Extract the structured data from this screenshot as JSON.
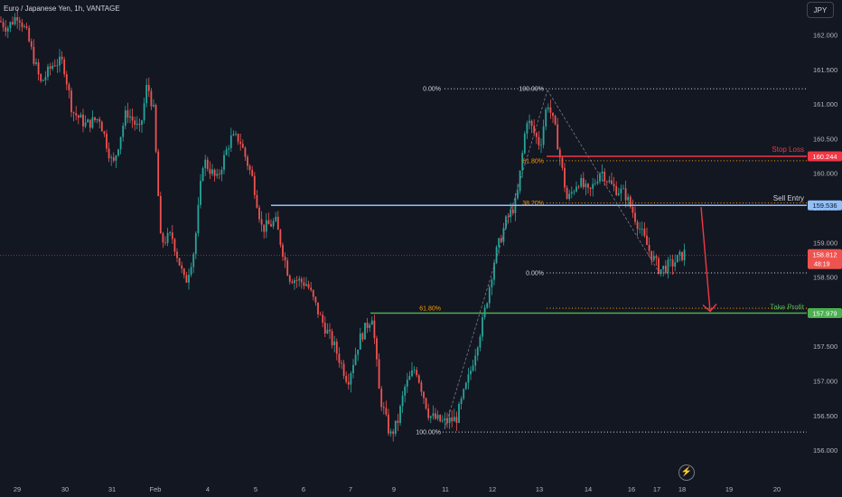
{
  "header": {
    "title": "Euro / Japanese Yen, 1h, VANTAGE",
    "currency": "JPY"
  },
  "alert_icon": "lightning-bolt-icon",
  "colors": {
    "background": "#131722",
    "up": "#26a69a",
    "down": "#ef5350",
    "grid_text": "#b2b5be",
    "stop_loss": "#f23645",
    "sell_entry": "#90bff9",
    "take_profit": "#4caf50",
    "fib_orange": "#ff9800",
    "arrow": "#f23645"
  },
  "chart_data": {
    "type": "candlestick",
    "symbol": "Euro / Japanese Yen",
    "timeframe": "1h",
    "source": "VANTAGE",
    "x_tick_labels": [
      "29",
      "30",
      "31",
      "Feb",
      "4",
      "5",
      "6",
      "7",
      "9",
      "11",
      "12",
      "13",
      "14",
      "16",
      "17",
      "18",
      "19",
      "20"
    ],
    "y_ticks": [
      156.0,
      156.5,
      157.0,
      157.5,
      158.0,
      158.5,
      159.0,
      159.5,
      160.0,
      160.5,
      161.0,
      161.5,
      162.0
    ],
    "y_tick_labels": [
      "156.000",
      "156.500",
      "157.000",
      "157.500",
      "158.000",
      "158.500",
      "159.000",
      "159.500",
      "160.000",
      "160.500",
      "161.000",
      "161.500",
      "162.000"
    ],
    "ylim": [
      155.75,
      162.3
    ],
    "price_segments": [
      {
        "x": 0,
        "y": 162.2
      },
      {
        "x": 8,
        "y": 162.1
      },
      {
        "x": 20,
        "y": 162.3
      },
      {
        "x": 30,
        "y": 162.0
      },
      {
        "x": 45,
        "y": 161.3
      },
      {
        "x": 60,
        "y": 161.6
      },
      {
        "x": 70,
        "y": 161.6
      },
      {
        "x": 80,
        "y": 160.9
      },
      {
        "x": 95,
        "y": 160.7
      },
      {
        "x": 110,
        "y": 160.8
      },
      {
        "x": 125,
        "y": 160.1
      },
      {
        "x": 140,
        "y": 160.9
      },
      {
        "x": 155,
        "y": 160.6
      },
      {
        "x": 163,
        "y": 161.3
      },
      {
        "x": 170,
        "y": 160.9
      },
      {
        "x": 178,
        "y": 159.0
      },
      {
        "x": 190,
        "y": 159.1
      },
      {
        "x": 205,
        "y": 158.4
      },
      {
        "x": 215,
        "y": 158.9
      },
      {
        "x": 225,
        "y": 160.2
      },
      {
        "x": 240,
        "y": 159.9
      },
      {
        "x": 255,
        "y": 160.5
      },
      {
        "x": 265,
        "y": 160.5
      },
      {
        "x": 280,
        "y": 159.9
      },
      {
        "x": 290,
        "y": 159.2
      },
      {
        "x": 305,
        "y": 159.3
      },
      {
        "x": 320,
        "y": 158.5
      },
      {
        "x": 340,
        "y": 158.4
      },
      {
        "x": 355,
        "y": 157.9
      },
      {
        "x": 370,
        "y": 157.5
      },
      {
        "x": 385,
        "y": 157.0
      },
      {
        "x": 398,
        "y": 157.6
      },
      {
        "x": 412,
        "y": 157.95
      },
      {
        "x": 420,
        "y": 156.8
      },
      {
        "x": 432,
        "y": 156.2
      },
      {
        "x": 440,
        "y": 156.4
      },
      {
        "x": 448,
        "y": 156.9
      },
      {
        "x": 460,
        "y": 157.2
      },
      {
        "x": 475,
        "y": 156.5
      },
      {
        "x": 490,
        "y": 156.4
      },
      {
        "x": 505,
        "y": 156.45
      },
      {
        "x": 520,
        "y": 157.1
      },
      {
        "x": 535,
        "y": 157.9
      },
      {
        "x": 548,
        "y": 158.8
      },
      {
        "x": 560,
        "y": 159.3
      },
      {
        "x": 572,
        "y": 159.6
      },
      {
        "x": 583,
        "y": 160.8
      },
      {
        "x": 598,
        "y": 160.4
      },
      {
        "x": 606,
        "y": 161.05
      },
      {
        "x": 615,
        "y": 160.6
      },
      {
        "x": 628,
        "y": 159.6
      },
      {
        "x": 640,
        "y": 159.9
      },
      {
        "x": 652,
        "y": 159.7
      },
      {
        "x": 665,
        "y": 160.05
      },
      {
        "x": 678,
        "y": 159.8
      },
      {
        "x": 692,
        "y": 159.7
      },
      {
        "x": 705,
        "y": 159.3
      },
      {
        "x": 718,
        "y": 158.9
      },
      {
        "x": 730,
        "y": 158.6
      },
      {
        "x": 745,
        "y": 158.7
      },
      {
        "x": 758,
        "y": 158.85
      }
    ],
    "current_price": "158.812",
    "countdown": "48:19",
    "levels": [
      {
        "name": "Stop Loss",
        "price_label": "160.244",
        "value": 160.244
      },
      {
        "name": "Sell Entry",
        "price_label": "159.536",
        "value": 159.536
      },
      {
        "name": "Take Profit",
        "price_label": "157.979",
        "value": 157.979
      }
    ],
    "fib_upper": {
      "labels": [
        "0.00%",
        "100.00%",
        "61.80%",
        "38.20%",
        "0.00%"
      ]
    },
    "fib_lower": {
      "labels": [
        "0.00%",
        "61.80%",
        "100.00%"
      ]
    },
    "grid": false
  }
}
